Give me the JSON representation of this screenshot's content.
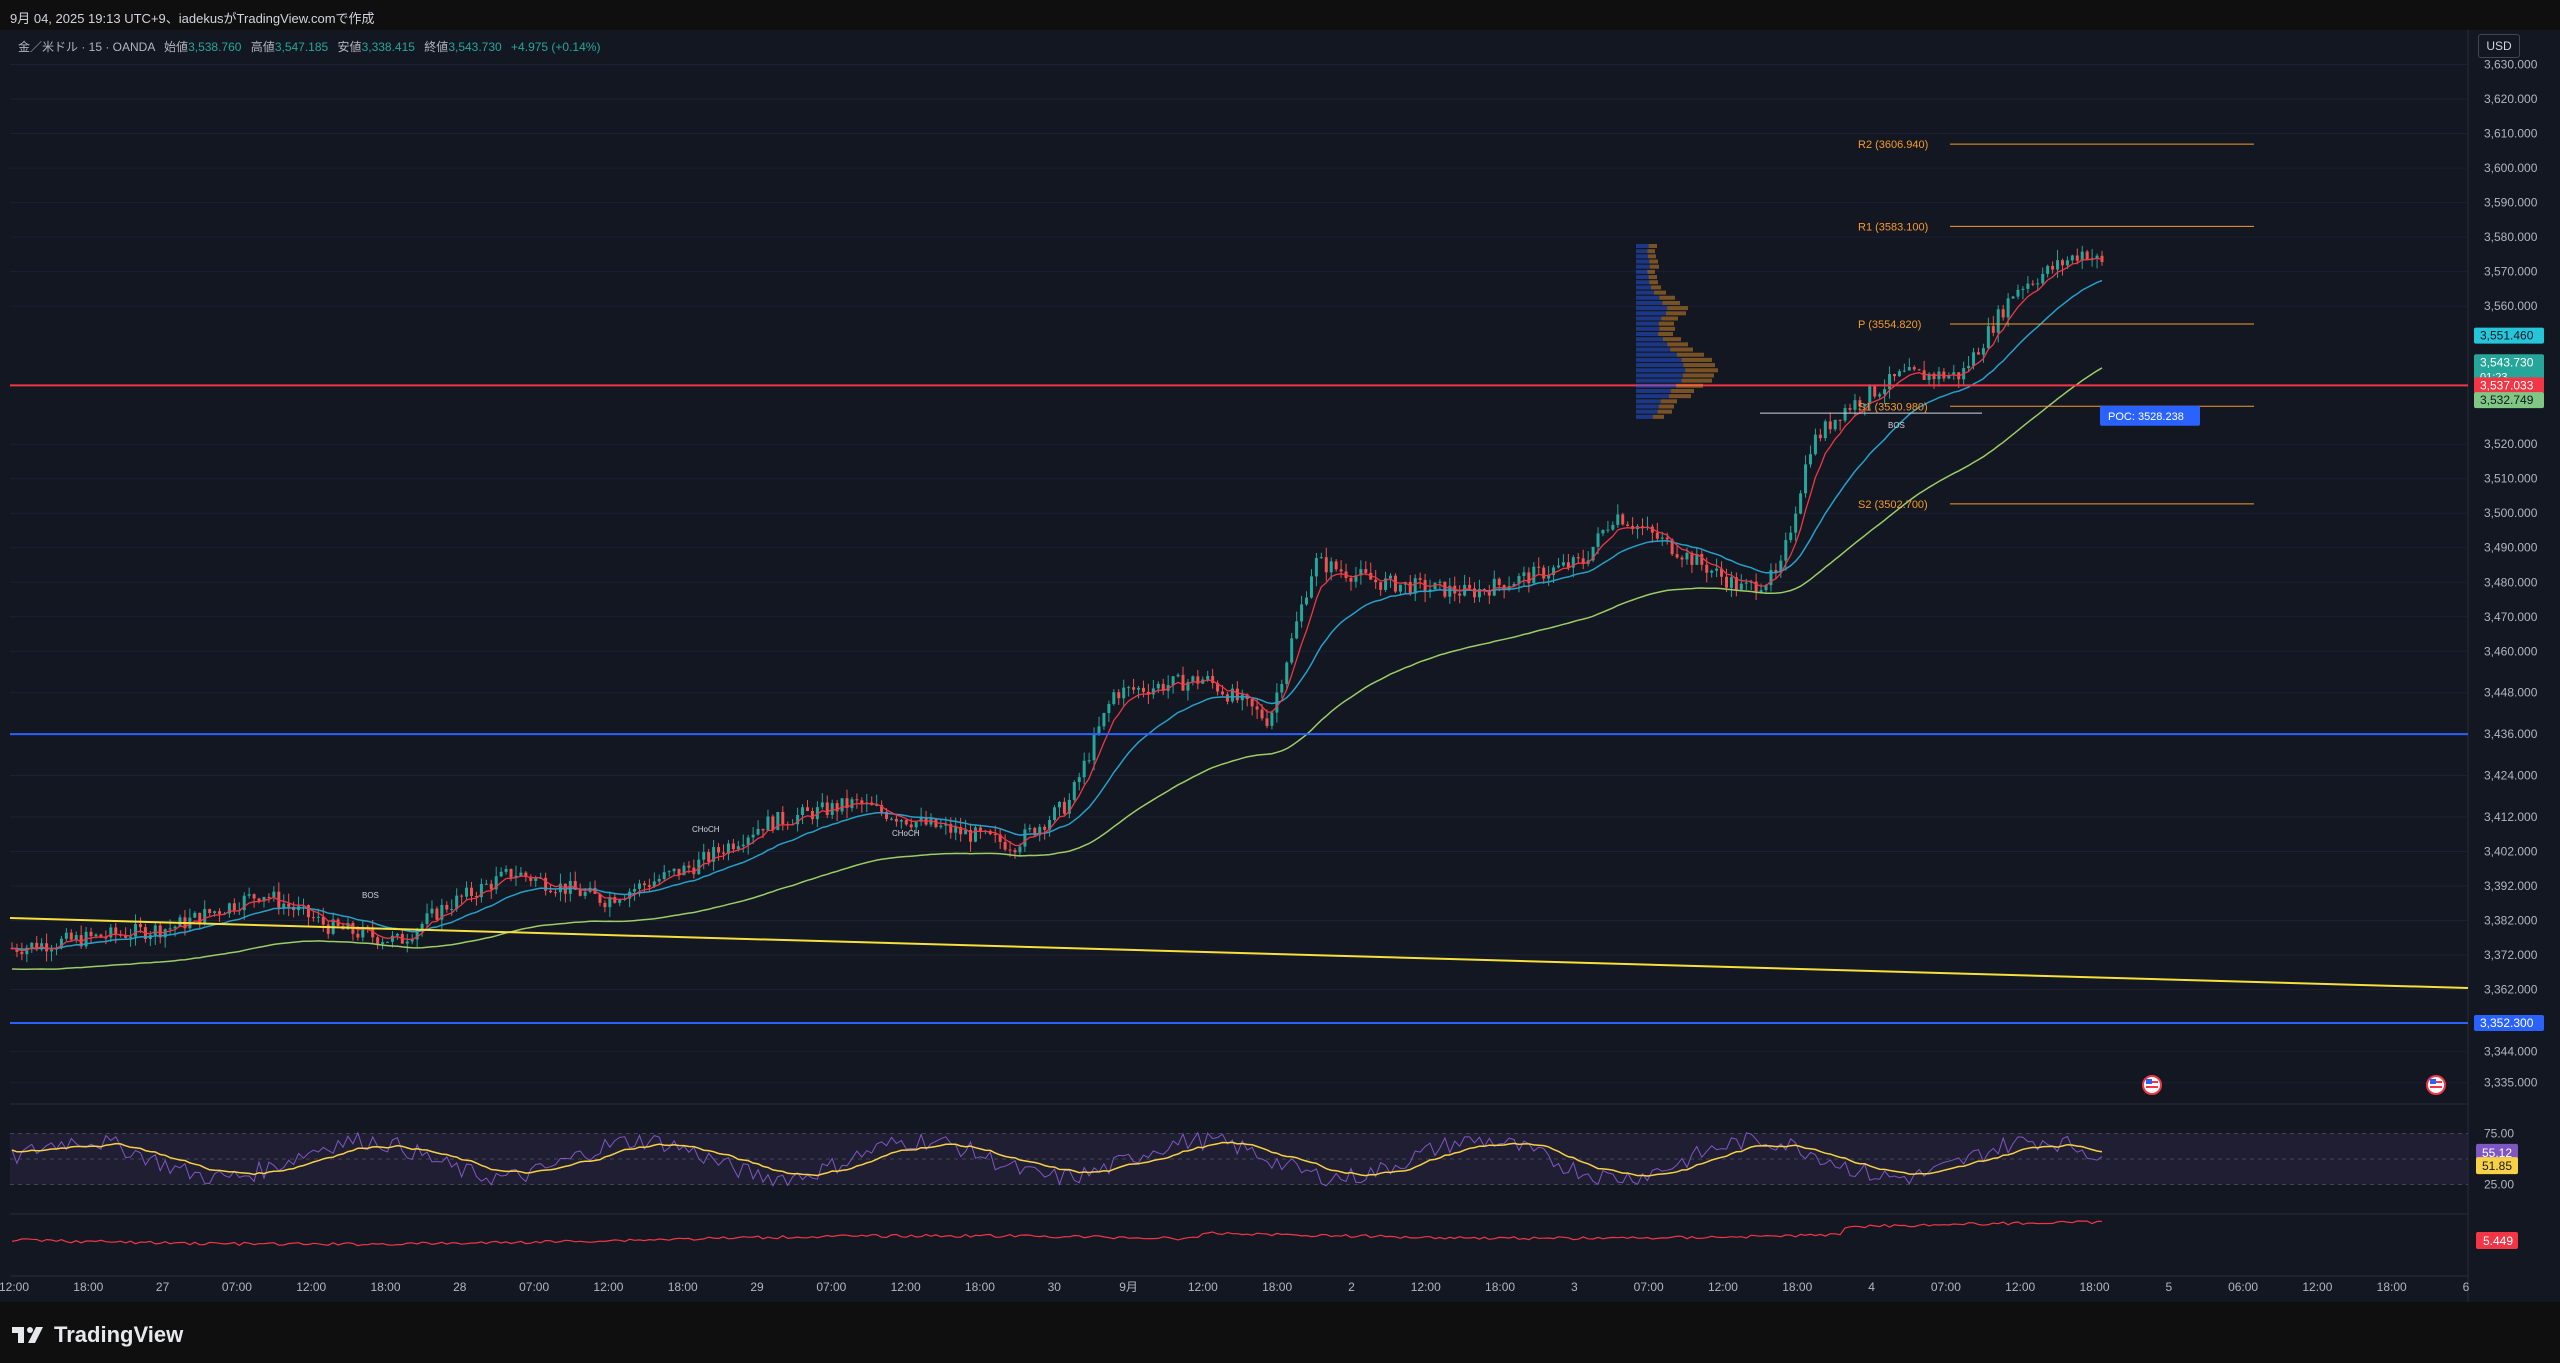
{
  "titlebar": {
    "text": "9月 04, 2025 19:13 UTC+9、iadekusがTradingView.comで作成"
  },
  "legend": {
    "symbol": "金／米ドル · 15 · OANDA",
    "open_label": "始値",
    "open": "3,538.760",
    "high_label": "高値",
    "high": "3,547.185",
    "low_label": "安値",
    "low": "3,338.415",
    "close_label": "終値",
    "close": "3,543.730",
    "change": "+4.975 (+0.14%)"
  },
  "currency": "USD",
  "brand": "TradingView",
  "price_axis": {
    "ticks": [
      "3,630.000",
      "3,620.000",
      "3,610.000",
      "3,600.000",
      "3,590.000",
      "3,580.000",
      "3,570.000",
      "3,560.000",
      "3,520.000",
      "3,510.000",
      "3,500.000",
      "3,490.000",
      "3,480.000",
      "3,470.000",
      "3,460.000",
      "3,448.000",
      "3,436.000",
      "3,424.000",
      "3,412.000",
      "3,402.000",
      "3,392.000",
      "3,382.000",
      "3,372.000",
      "3,362.000",
      "3,344.000",
      "3,335.000"
    ],
    "tick_values": [
      3630,
      3620,
      3610,
      3600,
      3590,
      3580,
      3570,
      3560,
      3520,
      3510,
      3500,
      3490,
      3480,
      3470,
      3460,
      3448,
      3436,
      3424,
      3412,
      3402,
      3392,
      3382,
      3372,
      3362,
      3344,
      3335
    ],
    "range": [
      3330,
      3640
    ],
    "badges": [
      {
        "text": "3,551.460",
        "value": 3551.46,
        "color": "#26c6da",
        "text_color": "#131722"
      },
      {
        "text": "3,543.730",
        "value": 3543.73,
        "color": "#26a69a",
        "text_color": "#ffffff",
        "sub": "01:23"
      },
      {
        "text": "3,537.033",
        "value": 3537.03,
        "color": "#f23645",
        "text_color": "#ffffff"
      },
      {
        "text": "3,532.749",
        "value": 3532.75,
        "color": "#81c784",
        "text_color": "#131722"
      },
      {
        "text": "3,352.300",
        "value": 3352.3,
        "color": "#2962ff",
        "text_color": "#ffffff"
      }
    ]
  },
  "time_axis": {
    "labels": [
      "12:00",
      "18:00",
      "27",
      "07:00",
      "12:00",
      "18:00",
      "28",
      "07:00",
      "12:00",
      "18:00",
      "29",
      "07:00",
      "12:00",
      "18:00",
      "30",
      "9月",
      "12:00",
      "18:00",
      "2",
      "12:00",
      "18:00",
      "3",
      "07:00",
      "12:00",
      "18:00",
      "4",
      "07:00",
      "12:00",
      "18:00",
      "5",
      "06:00",
      "12:00",
      "18:00",
      "6"
    ]
  },
  "pivots": [
    {
      "label": "R2 (3606.940)",
      "value": 3606.94
    },
    {
      "label": "R1 (3583.100)",
      "value": 3583.1
    },
    {
      "label": "P (3554.820)",
      "value": 3554.82
    },
    {
      "label": "S1 (3530.980)",
      "value": 3530.98
    },
    {
      "label": "S2 (3502.700)",
      "value": 3502.7
    }
  ],
  "poc": {
    "label": "POC: 3528.238",
    "value": 3528.238
  },
  "horizontal_lines": [
    {
      "value": 3436.0,
      "color": "#2962ff"
    },
    {
      "value": 3352.3,
      "color": "#2962ff"
    },
    {
      "value": 3537.03,
      "color": "#f23645"
    }
  ],
  "annotations": [
    "BOS",
    "CHoCH",
    "BOS",
    "CHoCH"
  ],
  "rsi": {
    "value": "55.12",
    "ma": "51.85",
    "levels": [
      "75.00",
      "25.00"
    ],
    "colors": {
      "rsi": "#7e57c2",
      "ma": "#f7d046",
      "band": "#2a2340"
    }
  },
  "atr": {
    "value": "5.449",
    "color": "#f23645"
  },
  "colors": {
    "up": "#26a69a",
    "down": "#ef5350",
    "trend": "#f7e03c",
    "ma_fast": "#f23645",
    "ma_mid": "#26a0c8",
    "ma_slow": "#9ccc65",
    "pivot": "#f59b2a",
    "profile_up": "#2962ff",
    "profile_down": "#f59b2a"
  },
  "icons": [
    "us-flag-event-icon",
    "us-flag-event-icon"
  ]
}
